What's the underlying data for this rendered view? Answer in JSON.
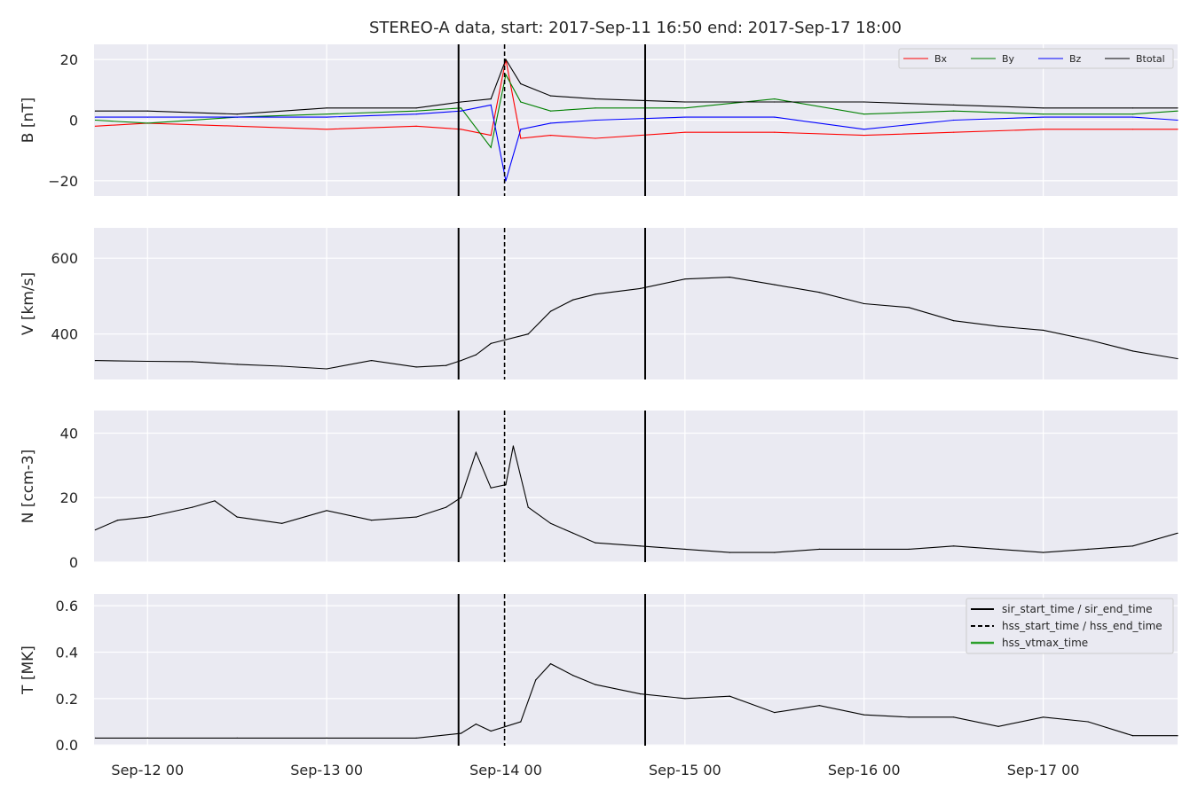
{
  "title": "STEREO-A data, start: 2017-Sep-11 16:50  end: 2017-Sep-17 18:00",
  "colors": {
    "panel_bg": "#EAEAF2",
    "grid": "#FFFFFF",
    "bx": "#FF0000",
    "by": "#008000",
    "bz": "#0000FF",
    "btotal": "#000000",
    "data": "#000000",
    "vtmax": "#2CA02C"
  },
  "chart_data": [
    {
      "type": "line",
      "ylabel": "B [nT]",
      "ylim": [
        -25,
        25
      ],
      "yticks": [
        20,
        0,
        -20
      ],
      "ytick_labels": [
        "20",
        "0",
        "−20"
      ],
      "legend_placement": "top-right",
      "series": [
        {
          "name": "Bx",
          "x": [
            "2017-09-11 17:00",
            "2017-09-12 00:00",
            "2017-09-12 12:00",
            "2017-09-13 00:00",
            "2017-09-13 12:00",
            "2017-09-13 18:00",
            "2017-09-13 22:00",
            "2017-09-14 00:00",
            "2017-09-14 02:00",
            "2017-09-14 06:00",
            "2017-09-14 12:00",
            "2017-09-15 00:00",
            "2017-09-15 12:00",
            "2017-09-16 00:00",
            "2017-09-16 12:00",
            "2017-09-17 00:00",
            "2017-09-17 12:00",
            "2017-09-17 18:00"
          ],
          "values": [
            -2,
            -1,
            -2,
            -3,
            -2,
            -3,
            -5,
            20,
            -6,
            -5,
            -6,
            -4,
            -4,
            -5,
            -4,
            -3,
            -3,
            -3
          ]
        },
        {
          "name": "By",
          "x": [
            "2017-09-11 17:00",
            "2017-09-12 00:00",
            "2017-09-12 12:00",
            "2017-09-13 00:00",
            "2017-09-13 12:00",
            "2017-09-13 18:00",
            "2017-09-13 22:00",
            "2017-09-14 00:00",
            "2017-09-14 02:00",
            "2017-09-14 06:00",
            "2017-09-14 12:00",
            "2017-09-15 00:00",
            "2017-09-15 12:00",
            "2017-09-16 00:00",
            "2017-09-16 12:00",
            "2017-09-17 00:00",
            "2017-09-17 12:00",
            "2017-09-17 18:00"
          ],
          "values": [
            0,
            -1,
            1,
            2,
            3,
            4,
            -9,
            15,
            6,
            3,
            4,
            4,
            7,
            2,
            3,
            2,
            2,
            3
          ]
        },
        {
          "name": "Bz",
          "x": [
            "2017-09-11 17:00",
            "2017-09-12 00:00",
            "2017-09-12 12:00",
            "2017-09-13 00:00",
            "2017-09-13 12:00",
            "2017-09-13 18:00",
            "2017-09-13 22:00",
            "2017-09-14 00:00",
            "2017-09-14 02:00",
            "2017-09-14 06:00",
            "2017-09-14 12:00",
            "2017-09-15 00:00",
            "2017-09-15 12:00",
            "2017-09-16 00:00",
            "2017-09-16 12:00",
            "2017-09-17 00:00",
            "2017-09-17 12:00",
            "2017-09-17 18:00"
          ],
          "values": [
            1,
            1,
            1,
            1,
            2,
            3,
            5,
            -20,
            -3,
            -1,
            0,
            1,
            1,
            -3,
            0,
            1,
            1,
            0
          ]
        },
        {
          "name": "Btotal",
          "x": [
            "2017-09-11 17:00",
            "2017-09-12 00:00",
            "2017-09-12 12:00",
            "2017-09-13 00:00",
            "2017-09-13 12:00",
            "2017-09-13 18:00",
            "2017-09-13 22:00",
            "2017-09-14 00:00",
            "2017-09-14 02:00",
            "2017-09-14 06:00",
            "2017-09-14 12:00",
            "2017-09-15 00:00",
            "2017-09-15 12:00",
            "2017-09-16 00:00",
            "2017-09-16 12:00",
            "2017-09-17 00:00",
            "2017-09-17 12:00",
            "2017-09-17 18:00"
          ],
          "values": [
            3,
            3,
            2,
            4,
            4,
            6,
            7,
            20,
            12,
            8,
            7,
            6,
            6,
            6,
            5,
            4,
            4,
            4
          ]
        }
      ]
    },
    {
      "type": "line",
      "ylabel": "V [km/s]",
      "ylim": [
        280,
        680
      ],
      "yticks": [
        600,
        400
      ],
      "ytick_labels": [
        "600",
        "400"
      ],
      "series": [
        {
          "x": [
            "2017-09-11 17:00",
            "2017-09-12 00:00",
            "2017-09-12 06:00",
            "2017-09-12 12:00",
            "2017-09-12 18:00",
            "2017-09-13 00:00",
            "2017-09-13 06:00",
            "2017-09-13 12:00",
            "2017-09-13 16:00",
            "2017-09-13 18:00",
            "2017-09-13 20:00",
            "2017-09-13 22:00",
            "2017-09-14 00:00",
            "2017-09-14 03:00",
            "2017-09-14 06:00",
            "2017-09-14 09:00",
            "2017-09-14 12:00",
            "2017-09-14 18:00",
            "2017-09-15 00:00",
            "2017-09-15 06:00",
            "2017-09-15 12:00",
            "2017-09-15 18:00",
            "2017-09-16 00:00",
            "2017-09-16 06:00",
            "2017-09-16 12:00",
            "2017-09-16 18:00",
            "2017-09-17 00:00",
            "2017-09-17 06:00",
            "2017-09-17 12:00",
            "2017-09-17 18:00"
          ],
          "values": [
            330,
            328,
            327,
            320,
            315,
            308,
            330,
            313,
            317,
            330,
            345,
            375,
            385,
            400,
            460,
            490,
            505,
            520,
            545,
            550,
            530,
            510,
            480,
            470,
            435,
            420,
            410,
            385,
            355,
            335
          ]
        }
      ]
    },
    {
      "type": "line",
      "ylabel": "N [ccm-3]",
      "ylim": [
        0,
        47
      ],
      "yticks": [
        40,
        20,
        0
      ],
      "ytick_labels": [
        "40",
        "20",
        "0"
      ],
      "series": [
        {
          "x": [
            "2017-09-11 17:00",
            "2017-09-11 20:00",
            "2017-09-12 00:00",
            "2017-09-12 06:00",
            "2017-09-12 09:00",
            "2017-09-12 12:00",
            "2017-09-12 18:00",
            "2017-09-13 00:00",
            "2017-09-13 06:00",
            "2017-09-13 12:00",
            "2017-09-13 16:00",
            "2017-09-13 18:00",
            "2017-09-13 20:00",
            "2017-09-13 22:00",
            "2017-09-14 00:00",
            "2017-09-14 01:00",
            "2017-09-14 03:00",
            "2017-09-14 06:00",
            "2017-09-14 09:00",
            "2017-09-14 12:00",
            "2017-09-14 18:00",
            "2017-09-15 00:00",
            "2017-09-15 06:00",
            "2017-09-15 12:00",
            "2017-09-15 18:00",
            "2017-09-16 00:00",
            "2017-09-16 06:00",
            "2017-09-16 12:00",
            "2017-09-16 18:00",
            "2017-09-17 00:00",
            "2017-09-17 06:00",
            "2017-09-17 12:00",
            "2017-09-17 18:00"
          ],
          "values": [
            10,
            13,
            14,
            17,
            19,
            14,
            12,
            16,
            13,
            14,
            17,
            20,
            34,
            23,
            24,
            36,
            17,
            12,
            9,
            6,
            5,
            4,
            3,
            3,
            4,
            4,
            4,
            5,
            4,
            3,
            4,
            5,
            9
          ]
        }
      ]
    },
    {
      "type": "line",
      "ylabel": "T [MK]",
      "ylim": [
        -0.003,
        0.65
      ],
      "yticks": [
        0.6,
        0.4,
        0.2,
        0.0
      ],
      "ytick_labels": [
        "0.6",
        "0.4",
        "0.2",
        "0.0"
      ],
      "legend_placement": "top-right",
      "series": [
        {
          "x": [
            "2017-09-11 17:00",
            "2017-09-12 00:00",
            "2017-09-12 12:00",
            "2017-09-13 00:00",
            "2017-09-13 12:00",
            "2017-09-13 18:00",
            "2017-09-13 20:00",
            "2017-09-13 22:00",
            "2017-09-14 00:00",
            "2017-09-14 02:00",
            "2017-09-14 04:00",
            "2017-09-14 06:00",
            "2017-09-14 09:00",
            "2017-09-14 12:00",
            "2017-09-14 18:00",
            "2017-09-15 00:00",
            "2017-09-15 06:00",
            "2017-09-15 12:00",
            "2017-09-15 18:00",
            "2017-09-16 00:00",
            "2017-09-16 06:00",
            "2017-09-16 12:00",
            "2017-09-16 18:00",
            "2017-09-17 00:00",
            "2017-09-17 06:00",
            "2017-09-17 12:00",
            "2017-09-17 18:00"
          ],
          "values": [
            0.03,
            0.03,
            0.03,
            0.03,
            0.03,
            0.05,
            0.09,
            0.06,
            0.08,
            0.1,
            0.28,
            0.35,
            0.3,
            0.26,
            0.22,
            0.2,
            0.21,
            0.14,
            0.17,
            0.13,
            0.12,
            0.12,
            0.08,
            0.12,
            0.1,
            0.04,
            0.04
          ]
        }
      ]
    }
  ],
  "x_axis": {
    "range": [
      "2017-09-11 16:50",
      "2017-09-17 18:00"
    ],
    "tick_labels": [
      "Sep-12 00",
      "Sep-13 00",
      "Sep-14 00",
      "Sep-15 00",
      "Sep-16 00",
      "Sep-17 00"
    ]
  },
  "event_lines": {
    "sir_start_time": "2017-09-13 17:40",
    "sir_end_time": "2017-09-14 18:40",
    "hss_start_time": "2017-09-13 23:50"
  },
  "legend_b": [
    "Bx",
    "By",
    "Bz",
    "Btotal"
  ],
  "legend_events": [
    "sir_start_time / sir_end_time",
    "hss_start_time / hss_end_time",
    "hss_vtmax_time"
  ]
}
